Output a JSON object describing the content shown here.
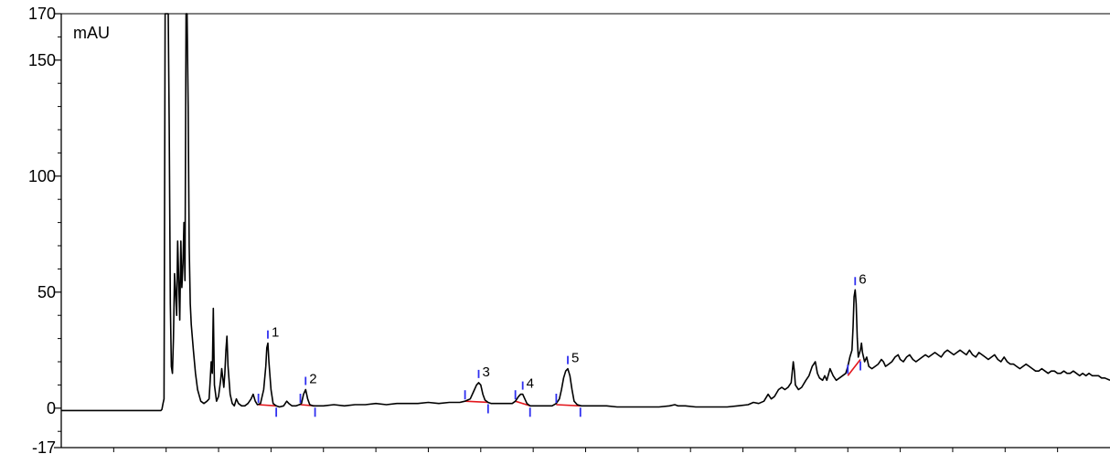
{
  "chart_data": {
    "type": "line",
    "ylabel": "mAU",
    "ylim": [
      -17,
      170
    ],
    "y_tick_labels": [
      {
        "value": 170,
        "label": "170"
      },
      {
        "value": 150,
        "label": "150"
      },
      {
        "value": 100,
        "label": "100"
      },
      {
        "value": 50,
        "label": "50"
      },
      {
        "value": 0,
        "label": "0"
      },
      {
        "value": -17,
        "label": "-17"
      }
    ],
    "y_minor_tick_step": 10,
    "xlim": [
      0,
      1
    ],
    "x_minor_tick_count": 19,
    "grid": false,
    "series": [
      {
        "color": "#000000",
        "points": [
          [
            0.0,
            -1.0
          ],
          [
            0.095,
            -1.0
          ],
          [
            0.096,
            -0.5
          ],
          [
            0.097,
            2
          ],
          [
            0.098,
            4
          ],
          [
            0.099,
            170
          ],
          [
            0.1,
            170
          ],
          [
            0.101,
            170
          ],
          [
            0.102,
            170
          ],
          [
            0.103,
            120
          ],
          [
            0.104,
            45
          ],
          [
            0.105,
            18
          ],
          [
            0.106,
            15
          ],
          [
            0.107,
            30
          ],
          [
            0.108,
            58
          ],
          [
            0.109,
            50
          ],
          [
            0.11,
            40
          ],
          [
            0.111,
            72
          ],
          [
            0.112,
            55
          ],
          [
            0.113,
            38
          ],
          [
            0.114,
            72
          ],
          [
            0.115,
            52
          ],
          [
            0.116,
            62
          ],
          [
            0.117,
            80
          ],
          [
            0.118,
            55
          ],
          [
            0.119,
            170
          ],
          [
            0.12,
            170
          ],
          [
            0.121,
            130
          ],
          [
            0.122,
            70
          ],
          [
            0.123,
            45
          ],
          [
            0.124,
            36
          ],
          [
            0.126,
            25
          ],
          [
            0.128,
            15
          ],
          [
            0.13,
            8
          ],
          [
            0.133,
            3
          ],
          [
            0.136,
            2
          ],
          [
            0.139,
            3
          ],
          [
            0.141,
            4
          ],
          [
            0.142,
            12
          ],
          [
            0.143,
            20
          ],
          [
            0.144,
            15
          ],
          [
            0.145,
            43
          ],
          [
            0.146,
            10
          ],
          [
            0.148,
            3
          ],
          [
            0.15,
            5
          ],
          [
            0.152,
            12
          ],
          [
            0.153,
            17
          ],
          [
            0.155,
            9
          ],
          [
            0.156,
            15
          ],
          [
            0.157,
            25
          ],
          [
            0.158,
            31
          ],
          [
            0.159,
            18
          ],
          [
            0.161,
            6
          ],
          [
            0.163,
            2
          ],
          [
            0.165,
            1
          ],
          [
            0.167,
            4
          ],
          [
            0.169,
            2
          ],
          [
            0.172,
            1
          ],
          [
            0.175,
            1
          ],
          [
            0.178,
            2
          ],
          [
            0.181,
            4
          ],
          [
            0.183,
            6
          ],
          [
            0.185,
            3
          ],
          [
            0.187,
            1.5
          ],
          [
            0.19,
            2
          ],
          [
            0.193,
            8
          ],
          [
            0.195,
            18
          ],
          [
            0.196,
            26
          ],
          [
            0.197,
            28
          ],
          [
            0.198,
            20
          ],
          [
            0.2,
            8
          ],
          [
            0.202,
            2
          ],
          [
            0.205,
            1
          ],
          [
            0.208,
            0.5
          ],
          [
            0.212,
            1
          ],
          [
            0.215,
            3
          ],
          [
            0.217,
            2
          ],
          [
            0.22,
            1
          ],
          [
            0.224,
            1
          ],
          [
            0.227,
            1.5
          ],
          [
            0.229,
            2
          ],
          [
            0.231,
            6
          ],
          [
            0.233,
            8
          ],
          [
            0.235,
            4
          ],
          [
            0.237,
            1.5
          ],
          [
            0.24,
            1
          ],
          [
            0.245,
            1
          ],
          [
            0.25,
            1
          ],
          [
            0.26,
            1.5
          ],
          [
            0.27,
            1
          ],
          [
            0.28,
            1.5
          ],
          [
            0.29,
            1.5
          ],
          [
            0.3,
            2
          ],
          [
            0.31,
            1.5
          ],
          [
            0.32,
            2
          ],
          [
            0.33,
            2
          ],
          [
            0.34,
            2
          ],
          [
            0.35,
            2.5
          ],
          [
            0.36,
            2
          ],
          [
            0.37,
            2.5
          ],
          [
            0.38,
            2.5
          ],
          [
            0.385,
            3
          ],
          [
            0.39,
            4
          ],
          [
            0.393,
            7
          ],
          [
            0.396,
            10
          ],
          [
            0.398,
            11
          ],
          [
            0.4,
            10
          ],
          [
            0.402,
            6
          ],
          [
            0.404,
            3.5
          ],
          [
            0.407,
            2.5
          ],
          [
            0.41,
            2
          ],
          [
            0.415,
            2
          ],
          [
            0.42,
            2
          ],
          [
            0.425,
            2
          ],
          [
            0.43,
            2
          ],
          [
            0.433,
            3
          ],
          [
            0.436,
            5
          ],
          [
            0.438,
            6
          ],
          [
            0.44,
            6
          ],
          [
            0.442,
            4
          ],
          [
            0.444,
            2
          ],
          [
            0.447,
            1
          ],
          [
            0.452,
            1
          ],
          [
            0.458,
            1
          ],
          [
            0.463,
            1
          ],
          [
            0.468,
            1
          ],
          [
            0.472,
            2
          ],
          [
            0.475,
            4
          ],
          [
            0.477,
            8
          ],
          [
            0.479,
            13
          ],
          [
            0.481,
            16
          ],
          [
            0.483,
            17
          ],
          [
            0.485,
            14
          ],
          [
            0.487,
            8
          ],
          [
            0.489,
            3
          ],
          [
            0.492,
            1.5
          ],
          [
            0.496,
            1
          ],
          [
            0.5,
            1
          ],
          [
            0.51,
            1
          ],
          [
            0.52,
            1
          ],
          [
            0.53,
            0.5
          ],
          [
            0.54,
            0.5
          ],
          [
            0.55,
            0.5
          ],
          [
            0.56,
            0.5
          ],
          [
            0.57,
            0.5
          ],
          [
            0.58,
            1
          ],
          [
            0.585,
            1.5
          ],
          [
            0.588,
            1
          ],
          [
            0.595,
            1
          ],
          [
            0.605,
            0.5
          ],
          [
            0.615,
            0.5
          ],
          [
            0.625,
            0.5
          ],
          [
            0.635,
            0.5
          ],
          [
            0.645,
            1
          ],
          [
            0.655,
            1.5
          ],
          [
            0.66,
            2.5
          ],
          [
            0.665,
            2
          ],
          [
            0.67,
            3
          ],
          [
            0.674,
            6
          ],
          [
            0.677,
            4
          ],
          [
            0.68,
            5
          ],
          [
            0.684,
            8
          ],
          [
            0.687,
            9
          ],
          [
            0.69,
            8
          ],
          [
            0.693,
            9
          ],
          [
            0.696,
            11
          ],
          [
            0.698,
            20
          ],
          [
            0.699,
            16
          ],
          [
            0.7,
            10
          ],
          [
            0.703,
            8
          ],
          [
            0.706,
            9
          ],
          [
            0.71,
            12
          ],
          [
            0.713,
            14
          ],
          [
            0.716,
            18
          ],
          [
            0.719,
            20
          ],
          [
            0.721,
            15
          ],
          [
            0.723,
            13
          ],
          [
            0.726,
            12
          ],
          [
            0.728,
            14
          ],
          [
            0.73,
            12
          ],
          [
            0.733,
            17
          ],
          [
            0.736,
            14
          ],
          [
            0.739,
            12
          ],
          [
            0.742,
            13
          ],
          [
            0.745,
            14
          ],
          [
            0.748,
            15
          ],
          [
            0.75,
            18
          ],
          [
            0.752,
            22
          ],
          [
            0.754,
            25
          ],
          [
            0.755,
            35
          ],
          [
            0.756,
            48
          ],
          [
            0.757,
            51
          ],
          [
            0.758,
            45
          ],
          [
            0.759,
            30
          ],
          [
            0.76,
            22
          ],
          [
            0.762,
            25
          ],
          [
            0.763,
            28
          ],
          [
            0.764,
            24
          ],
          [
            0.766,
            20
          ],
          [
            0.768,
            22
          ],
          [
            0.77,
            18
          ],
          [
            0.773,
            17
          ],
          [
            0.776,
            18
          ],
          [
            0.779,
            19
          ],
          [
            0.782,
            21
          ],
          [
            0.784,
            20
          ],
          [
            0.786,
            18
          ],
          [
            0.789,
            19
          ],
          [
            0.792,
            20
          ],
          [
            0.795,
            22
          ],
          [
            0.798,
            23
          ],
          [
            0.8,
            21
          ],
          [
            0.803,
            20
          ],
          [
            0.806,
            22
          ],
          [
            0.809,
            23
          ],
          [
            0.812,
            21
          ],
          [
            0.815,
            20
          ],
          [
            0.818,
            21
          ],
          [
            0.821,
            22
          ],
          [
            0.824,
            23
          ],
          [
            0.827,
            22
          ],
          [
            0.83,
            23
          ],
          [
            0.833,
            24
          ],
          [
            0.836,
            23
          ],
          [
            0.839,
            22
          ],
          [
            0.842,
            24
          ],
          [
            0.845,
            25
          ],
          [
            0.848,
            24
          ],
          [
            0.851,
            23
          ],
          [
            0.854,
            24
          ],
          [
            0.857,
            25
          ],
          [
            0.86,
            24
          ],
          [
            0.863,
            23
          ],
          [
            0.866,
            25
          ],
          [
            0.869,
            23
          ],
          [
            0.872,
            22
          ],
          [
            0.875,
            24
          ],
          [
            0.878,
            23
          ],
          [
            0.881,
            22
          ],
          [
            0.884,
            21
          ],
          [
            0.887,
            22
          ],
          [
            0.89,
            23
          ],
          [
            0.893,
            21
          ],
          [
            0.896,
            20
          ],
          [
            0.899,
            22
          ],
          [
            0.902,
            20
          ],
          [
            0.905,
            19
          ],
          [
            0.908,
            19
          ],
          [
            0.911,
            18
          ],
          [
            0.914,
            17
          ],
          [
            0.917,
            18
          ],
          [
            0.92,
            19
          ],
          [
            0.923,
            18
          ],
          [
            0.926,
            17
          ],
          [
            0.929,
            16
          ],
          [
            0.932,
            16
          ],
          [
            0.935,
            17
          ],
          [
            0.938,
            16
          ],
          [
            0.941,
            15
          ],
          [
            0.944,
            16
          ],
          [
            0.947,
            16
          ],
          [
            0.95,
            15
          ],
          [
            0.953,
            15
          ],
          [
            0.956,
            16
          ],
          [
            0.959,
            15
          ],
          [
            0.962,
            15
          ],
          [
            0.965,
            16
          ],
          [
            0.968,
            15
          ],
          [
            0.971,
            14
          ],
          [
            0.974,
            15
          ],
          [
            0.977,
            14
          ],
          [
            0.98,
            15
          ],
          [
            0.983,
            14
          ],
          [
            0.986,
            14
          ],
          [
            0.989,
            14
          ],
          [
            0.992,
            13
          ],
          [
            0.995,
            13
          ],
          [
            1.0,
            12
          ]
        ]
      }
    ],
    "integrated_peaks": [
      {
        "label": "1",
        "x": 0.197,
        "y": 28,
        "base_start": [
          0.188,
          1.5
        ],
        "base_end": [
          0.205,
          1.0
        ]
      },
      {
        "label": "2",
        "x": 0.233,
        "y": 8,
        "base_start": [
          0.228,
          1.5
        ],
        "base_end": [
          0.242,
          1.0
        ]
      },
      {
        "label": "3",
        "x": 0.398,
        "y": 11,
        "base_start": [
          0.385,
          3
        ],
        "base_end": [
          0.407,
          2.5
        ]
      },
      {
        "label": "4",
        "x": 0.44,
        "y": 6,
        "base_start": [
          0.433,
          3
        ],
        "base_end": [
          0.447,
          1
        ]
      },
      {
        "label": "5",
        "x": 0.483,
        "y": 17,
        "base_start": [
          0.472,
          1.5
        ],
        "base_end": [
          0.495,
          1.0
        ]
      },
      {
        "label": "6",
        "x": 0.757,
        "y": 51,
        "base_start": [
          0.75,
          14
        ],
        "base_end": [
          0.762,
          21
        ]
      }
    ],
    "colors": {
      "trace": "#000000",
      "baseline": "#e3171d",
      "marker": "#2f2ff0",
      "axis": "#000000"
    }
  }
}
